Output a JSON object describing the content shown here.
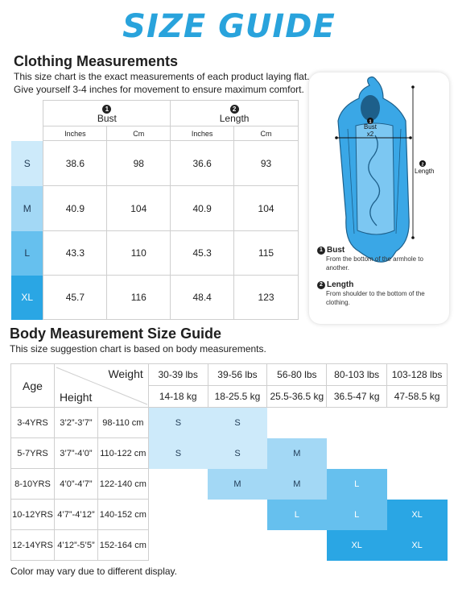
{
  "title": "SIZE GUIDE",
  "clothing": {
    "heading": "Clothing Measurements",
    "subtitle_line1": "This size chart is the exact measurements of each product laying flat.",
    "subtitle_line2": "Give yourself 3-4 inches for movement to ensure maximum comfort.",
    "col_groups": [
      {
        "num": "1",
        "label": "Bust"
      },
      {
        "num": "2",
        "label": "Length"
      }
    ],
    "units": [
      "Inches",
      "Cm",
      "Inches",
      "Cm"
    ],
    "rows": [
      {
        "size": "S",
        "bust_in": "38.6",
        "bust_cm": "98",
        "len_in": "36.6",
        "len_cm": "93",
        "color": "#cdeafa"
      },
      {
        "size": "M",
        "bust_in": "40.9",
        "bust_cm": "104",
        "len_in": "40.9",
        "len_cm": "104",
        "color": "#a3d8f5"
      },
      {
        "size": "L",
        "bust_in": "43.3",
        "bust_cm": "110",
        "len_in": "45.3",
        "len_cm": "115",
        "color": "#66c0ee"
      },
      {
        "size": "XL",
        "bust_in": "45.7",
        "bust_cm": "116",
        "len_in": "48.4",
        "len_cm": "123",
        "color": "#2aa6e4"
      }
    ]
  },
  "figure": {
    "bust_label_num": "1",
    "bust_label": "Bust",
    "bust_mult": "x2",
    "length_label_num": "2",
    "length_label": "Length",
    "legend": [
      {
        "num": "1",
        "title": "Bust",
        "desc": "From the bottom of the armhole to another."
      },
      {
        "num": "2",
        "title": "Length",
        "desc": "From shoulder to the bottom of the clothing."
      }
    ]
  },
  "body": {
    "heading": "Body Measurement Size Guide",
    "subtitle": "This size suggestion chart is based on body measurements.",
    "age_label": "Age",
    "weight_label": "Weight",
    "height_label": "Height",
    "weights_lbs": [
      "30-39 lbs",
      "39-56 lbs",
      "56-80 lbs",
      "80-103 lbs",
      "103-128 lbs"
    ],
    "weights_kg": [
      "14-18 kg",
      "18-25.5 kg",
      "25.5-36.5 kg",
      "36.5-47 kg",
      "47-58.5 kg"
    ],
    "rows": [
      {
        "age": "3-4YRS",
        "height_in": "3’2”-3’7”",
        "height_cm": "98-110 cm",
        "cells": [
          "S",
          "S",
          "",
          "",
          ""
        ]
      },
      {
        "age": "5-7YRS",
        "height_in": "3’7”-4’0”",
        "height_cm": "110-122 cm",
        "cells": [
          "S",
          "S",
          "M",
          "",
          ""
        ]
      },
      {
        "age": "8-10YRS",
        "height_in": "4’0”-4’7”",
        "height_cm": "122-140 cm",
        "cells": [
          "",
          "M",
          "M",
          "L",
          ""
        ]
      },
      {
        "age": "10-12YRS",
        "height_in": "4’7”-4’12”",
        "height_cm": "140-152 cm",
        "cells": [
          "",
          "",
          "L",
          "L",
          "XL"
        ]
      },
      {
        "age": "12-14YRS",
        "height_in": "4’12”-5’5”",
        "height_cm": "152-164 cm",
        "cells": [
          "",
          "",
          "",
          "XL",
          "XL"
        ]
      }
    ],
    "size_colors": {
      "S": "#cdeafa",
      "M": "#a3d8f5",
      "L": "#66c0ee",
      "XL": "#2aa6e4"
    }
  },
  "footnote": "Color may vary due to different display."
}
